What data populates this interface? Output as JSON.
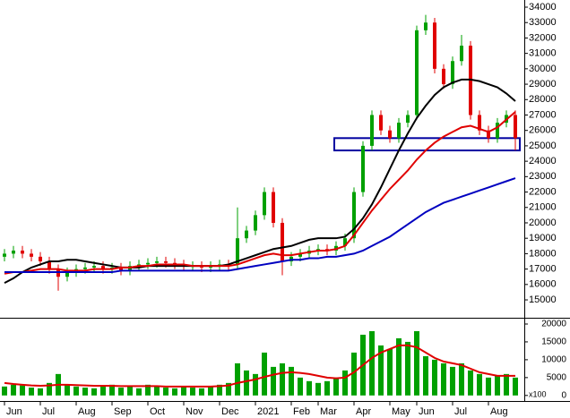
{
  "chart_data": {
    "type": "candlestick",
    "categories": [
      "Jun",
      null,
      null,
      null,
      "Jul",
      null,
      null,
      null,
      "Aug",
      null,
      null,
      null,
      "Sep",
      null,
      null,
      null,
      "Oct",
      null,
      null,
      null,
      "Nov",
      null,
      null,
      null,
      "Dec",
      null,
      null,
      null,
      "2021",
      null,
      null,
      null,
      "Feb",
      null,
      null,
      "Mar",
      null,
      null,
      null,
      "Apr",
      null,
      null,
      null,
      "May",
      null,
      null,
      "Jun",
      null,
      null,
      null,
      "Jul",
      null,
      null,
      null,
      "Aug",
      null,
      null,
      null
    ],
    "open": [
      17800,
      18000,
      18200,
      18000,
      17800,
      17500,
      17000,
      16500,
      16800,
      17000,
      17100,
      17200,
      17000,
      17100,
      16900,
      17200,
      17300,
      17400,
      17500,
      17400,
      17300,
      17200,
      17200,
      17100,
      17200,
      17300,
      17300,
      19000,
      19500,
      20500,
      22000,
      20000,
      17500,
      17800,
      18000,
      18200,
      18300,
      18200,
      18500,
      19000,
      22000,
      25000,
      27000,
      26000,
      25500,
      26500,
      27000,
      32500,
      33000,
      30000,
      29000,
      30500,
      31500,
      27000,
      26000,
      25500,
      26500,
      27000
    ],
    "high": [
      18300,
      18500,
      18500,
      18300,
      18100,
      17800,
      17300,
      17100,
      17300,
      17400,
      17500,
      17500,
      17400,
      17400,
      17500,
      17600,
      17700,
      17800,
      17800,
      17700,
      17600,
      17500,
      17500,
      17500,
      17600,
      17600,
      21000,
      19800,
      20800,
      22300,
      22300,
      20300,
      18100,
      18300,
      18500,
      18600,
      18600,
      18800,
      19300,
      22300,
      25300,
      27300,
      27300,
      26300,
      26800,
      27300,
      32800,
      33500,
      33300,
      30300,
      30800,
      32200,
      31800,
      27300,
      26300,
      26800,
      27300,
      27300
    ],
    "low": [
      17500,
      17700,
      17700,
      17500,
      17200,
      16700,
      15600,
      16200,
      16500,
      16700,
      16800,
      16700,
      16700,
      16600,
      16600,
      16900,
      17000,
      17100,
      17100,
      17000,
      16900,
      16900,
      16800,
      16800,
      16900,
      16900,
      17000,
      18700,
      19200,
      20200,
      19700,
      16600,
      17200,
      17500,
      17700,
      17900,
      17900,
      17900,
      18200,
      18700,
      21700,
      24700,
      25700,
      25200,
      25200,
      26200,
      26700,
      32200,
      29700,
      28700,
      28700,
      30200,
      26700,
      25700,
      25200,
      25200,
      26200,
      24700
    ],
    "close": [
      18000,
      18200,
      18000,
      17800,
      17500,
      17000,
      16500,
      16800,
      17000,
      17100,
      17200,
      17000,
      17100,
      16900,
      17200,
      17300,
      17400,
      17500,
      17400,
      17300,
      17200,
      17200,
      17100,
      17200,
      17300,
      17200,
      19000,
      19500,
      20500,
      22000,
      20000,
      17500,
      17800,
      18000,
      18200,
      18300,
      18200,
      18500,
      19000,
      22000,
      25000,
      27000,
      26000,
      25500,
      26500,
      27000,
      32500,
      33000,
      30000,
      29000,
      30500,
      31500,
      27000,
      26000,
      25500,
      26500,
      27000,
      25500
    ],
    "up_color": "#00a000",
    "down_color": "#e00000",
    "ma_lines": [
      {
        "color": "#000000",
        "values": [
          16100,
          16400,
          16800,
          17100,
          17300,
          17500,
          17500,
          17600,
          17600,
          17500,
          17400,
          17300,
          17200,
          17100,
          17100,
          17100,
          17200,
          17200,
          17200,
          17200,
          17200,
          17200,
          17200,
          17200,
          17200,
          17300,
          17500,
          17700,
          17900,
          18100,
          18300,
          18400,
          18500,
          18700,
          18900,
          19000,
          19000,
          19000,
          19100,
          19600,
          20300,
          21200,
          22300,
          23500,
          24700,
          25800,
          26800,
          27600,
          28300,
          28800,
          29100,
          29300,
          29300,
          29200,
          29000,
          28800,
          28400,
          27900
        ]
      },
      {
        "color": "#e00000",
        "values": [
          16700,
          16800,
          16800,
          16900,
          17000,
          17000,
          17000,
          16900,
          16900,
          16900,
          17000,
          17000,
          17000,
          17100,
          17100,
          17200,
          17200,
          17300,
          17300,
          17300,
          17300,
          17200,
          17200,
          17200,
          17200,
          17200,
          17300,
          17500,
          17700,
          17900,
          18000,
          17900,
          17900,
          18000,
          18100,
          18200,
          18200,
          18300,
          18500,
          19200,
          20000,
          20800,
          21500,
          22200,
          22800,
          23400,
          24100,
          24700,
          25200,
          25600,
          25900,
          26200,
          26300,
          26100,
          25900,
          26200,
          26700,
          27200
        ]
      },
      {
        "color": "#0000c0",
        "values": [
          16800,
          16800,
          16800,
          16800,
          16800,
          16800,
          16800,
          16800,
          16800,
          16800,
          16800,
          16800,
          16800,
          16900,
          16900,
          16900,
          16900,
          16900,
          16900,
          16900,
          16900,
          16900,
          16900,
          16900,
          16900,
          16900,
          17000,
          17100,
          17200,
          17300,
          17400,
          17500,
          17600,
          17600,
          17700,
          17700,
          17800,
          17800,
          17900,
          18000,
          18200,
          18500,
          18800,
          19100,
          19500,
          19900,
          20300,
          20700,
          21000,
          21300,
          21500,
          21700,
          21900,
          22100,
          22300,
          22500,
          22700,
          22900
        ]
      }
    ],
    "support_zone": {
      "color": "#0000a0",
      "range": [
        24700,
        25500
      ]
    },
    "ylim": [
      13840,
      34465
    ],
    "yticks": [
      15000,
      16000,
      17000,
      18000,
      19000,
      20000,
      21000,
      22000,
      23000,
      24000,
      25000,
      26000,
      27000,
      28000,
      29000,
      30000,
      31000,
      32000,
      33000,
      34000
    ],
    "volume": {
      "color": "#00a000",
      "unit": "x100",
      "values": [
        2500,
        3000,
        2800,
        2200,
        2000,
        3500,
        6000,
        3000,
        2500,
        2200,
        2000,
        2500,
        3000,
        2200,
        2500,
        2000,
        3000,
        2500,
        2200,
        2000,
        2500,
        2200,
        2000,
        2500,
        3000,
        3500,
        9000,
        7000,
        6000,
        12000,
        8000,
        9000,
        8000,
        5000,
        4000,
        3500,
        4000,
        5000,
        7000,
        12000,
        17000,
        18000,
        14000,
        13000,
        16000,
        15000,
        18000,
        11000,
        10000,
        9000,
        8000,
        9000,
        7000,
        6000,
        5000,
        5500,
        6000,
        5000
      ],
      "ma": {
        "color": "#e00000",
        "values": [
          3500,
          3200,
          3000,
          2800,
          2700,
          2800,
          3000,
          3000,
          2900,
          2800,
          2700,
          2700,
          2700,
          2600,
          2600,
          2600,
          2600,
          2600,
          2500,
          2500,
          2500,
          2500,
          2500,
          2500,
          2600,
          2800,
          3500,
          4000,
          4500,
          5200,
          5800,
          6300,
          6500,
          6300,
          6000,
          5500,
          5000,
          4800,
          5000,
          6500,
          8500,
          10500,
          12000,
          13000,
          14000,
          14000,
          13500,
          12000,
          10500,
          9500,
          9000,
          8500,
          7500,
          6500,
          6000,
          5500,
          5500,
          5500
        ]
      },
      "ylim": [
        -1300,
        21000
      ],
      "yticks": [
        0,
        5000,
        10000,
        15000,
        20000
      ]
    }
  }
}
